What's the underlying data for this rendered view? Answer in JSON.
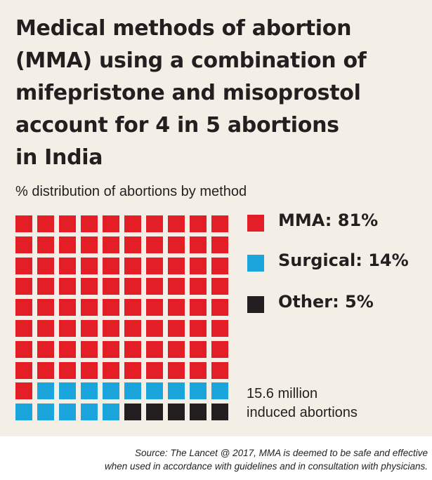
{
  "chart_data": {
    "type": "waffle",
    "title": "Medical methods of abortion (MMA) using a combination of mifepristone and misoprostol account for 4 in 5 abortions in India",
    "subtitle": "% distribution of abortions by method",
    "grid": {
      "rows": 10,
      "cols": 10
    },
    "series": [
      {
        "name": "MMA",
        "value": 81,
        "color": "#e31e26",
        "label": "MMA: 81%"
      },
      {
        "name": "Surgical",
        "value": 14,
        "color": "#1aa6dd",
        "label": "Surgical: 14%"
      },
      {
        "name": "Other",
        "value": 5,
        "color": "#231f20",
        "label": "Other: 5%"
      }
    ],
    "total": {
      "value": "15.6 million",
      "label": "induced abortions"
    }
  },
  "title_lines": [
    "Medical methods of abortion",
    "(MMA) using a combination of",
    "mifepristone and misoprostol",
    "account for 4 in 5 abortions",
    "in India"
  ],
  "source_lines": [
    "Source: The Lancet @ 2017, MMA is deemed to be safe and effective",
    "when used in accordance with guidelines and in consultation with physicians."
  ]
}
